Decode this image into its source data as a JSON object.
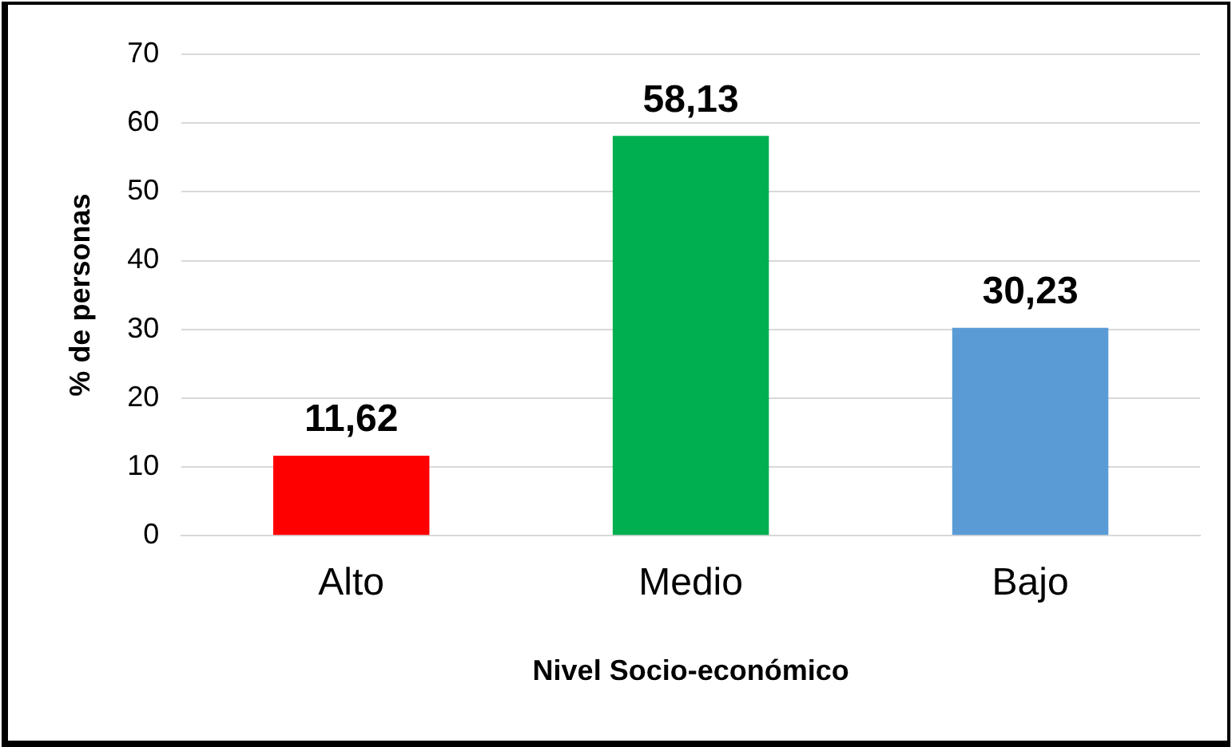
{
  "chart_data": {
    "type": "bar",
    "xlabel": "Nivel Socio-económico",
    "ylabel": "% de personas",
    "categories": [
      "Alto",
      "Medio",
      "Bajo"
    ],
    "values": [
      11.62,
      58.13,
      30.23
    ],
    "colors": [
      "#ff0000",
      "#00b050",
      "#5b9bd5"
    ],
    "value_labels": [
      "11,62",
      "58,13",
      "30,23"
    ],
    "ylim": [
      0,
      70
    ],
    "yticks": [
      0,
      10,
      20,
      30,
      40,
      50,
      60,
      70
    ],
    "grid": "y",
    "legend": false
  }
}
